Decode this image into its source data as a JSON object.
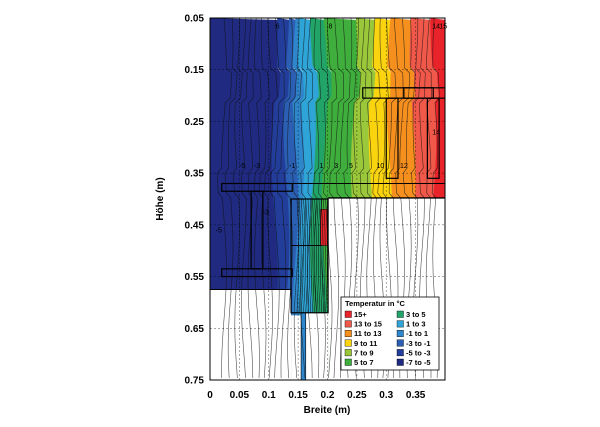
{
  "chart_data": {
    "type": "heatmap",
    "title": "",
    "xlabel": "Breite (m)",
    "ylabel": "Höhe (m)",
    "xlim": [
      0,
      0.4
    ],
    "ylim": [
      0.75,
      0.05
    ],
    "x_ticks": [
      "0",
      "0.05",
      "0.1",
      "0.15",
      "0.2",
      "0.25",
      "0.3",
      "0.35"
    ],
    "y_ticks": [
      "0.05",
      "0.15",
      "0.25",
      "0.35",
      "0.45",
      "0.55",
      "0.65",
      "0.75"
    ],
    "x_tick_values": [
      0,
      0.05,
      0.1,
      0.15,
      0.2,
      0.25,
      0.3,
      0.35
    ],
    "y_tick_values": [
      0.05,
      0.15,
      0.25,
      0.35,
      0.45,
      0.55,
      0.65,
      0.75
    ],
    "grid": true,
    "legend_placement": "bottom-right",
    "legend": {
      "title": "Temperatur in °C",
      "entries": [
        {
          "label": "15+",
          "color": "#e8242a"
        },
        {
          "label": "13 to 15",
          "color": "#f0584a"
        },
        {
          "label": "11 to 13",
          "color": "#f5901f"
        },
        {
          "label": "9 to 11",
          "color": "#fad40e"
        },
        {
          "label": "7 to 9",
          "color": "#9bc73a"
        },
        {
          "label": "5 to 7",
          "color": "#3fae3c"
        },
        {
          "label": "3 to 5",
          "color": "#22a468"
        },
        {
          "label": "1 to 3",
          "color": "#2fa4d6"
        },
        {
          "label": "-1 to 1",
          "color": "#2f86ca"
        },
        {
          "label": "-3 to -1",
          "color": "#2b5fb4"
        },
        {
          "label": "-5 to -3",
          "color": "#233e9a"
        },
        {
          "label": "-7 to -5",
          "color": "#1f2a80"
        }
      ]
    },
    "bands_left_to_right": [
      {
        "x_from": 0.0,
        "x_to": 0.11,
        "color": "#1f2a80"
      },
      {
        "x_from": 0.11,
        "x_to": 0.13,
        "color": "#233e9a"
      },
      {
        "x_from": 0.13,
        "x_to": 0.145,
        "color": "#2b5fb4"
      },
      {
        "x_from": 0.145,
        "x_to": 0.155,
        "color": "#2f86ca"
      },
      {
        "x_from": 0.155,
        "x_to": 0.175,
        "color": "#2fa4d6"
      },
      {
        "x_from": 0.175,
        "x_to": 0.195,
        "color": "#22a468"
      },
      {
        "x_from": 0.195,
        "x_to": 0.245,
        "color": "#3fae3c"
      },
      {
        "x_from": 0.245,
        "x_to": 0.275,
        "color": "#9bc73a"
      },
      {
        "x_from": 0.275,
        "x_to": 0.305,
        "color": "#fad40e"
      },
      {
        "x_from": 0.305,
        "x_to": 0.345,
        "color": "#f5901f"
      },
      {
        "x_from": 0.345,
        "x_to": 0.38,
        "color": "#f0584a"
      },
      {
        "x_from": 0.38,
        "x_to": 0.4,
        "color": "#e8242a"
      }
    ],
    "contour_labels": [
      "-5",
      "-5",
      "-3",
      "-3",
      "-1",
      "1",
      "3",
      "5",
      "6",
      "8",
      "10",
      "12",
      "14",
      "14",
      "15"
    ]
  }
}
